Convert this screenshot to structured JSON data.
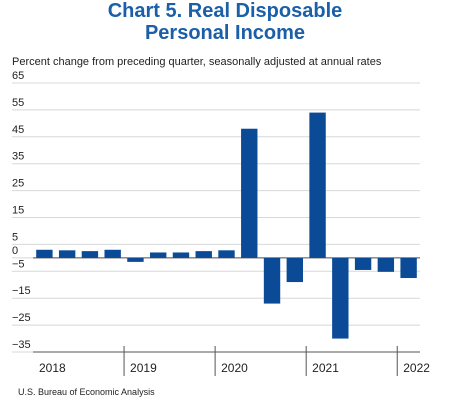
{
  "chart_data": {
    "type": "bar",
    "title": "Chart 5. Real Disposable Personal Income",
    "subtitle": "Percent change from preceding quarter, seasonally adjusted at annual rates",
    "source": "U.S. Bureau of Economic Analysis",
    "categories": [
      "2018",
      null,
      null,
      null,
      "2019",
      null,
      null,
      null,
      "2020",
      null,
      null,
      null,
      "2021",
      null,
      null,
      null,
      "2022"
    ],
    "values": [
      3,
      2.8,
      2.5,
      3,
      -1.5,
      2,
      2,
      2.5,
      2.8,
      48,
      -17,
      -9,
      54,
      -30,
      -4.5,
      -5.2,
      -7.5
    ],
    "color": "#0a4a96",
    "ylim": [
      -35,
      65
    ],
    "yticks": [
      65,
      55,
      45,
      35,
      25,
      15,
      5,
      0,
      {
        "value": -5,
        "label": "−5"
      },
      {
        "value": -15,
        "label": "−15"
      },
      {
        "value": -25,
        "label": "−25"
      },
      {
        "value": -35,
        "label": "−35"
      }
    ],
    "grid": true
  }
}
